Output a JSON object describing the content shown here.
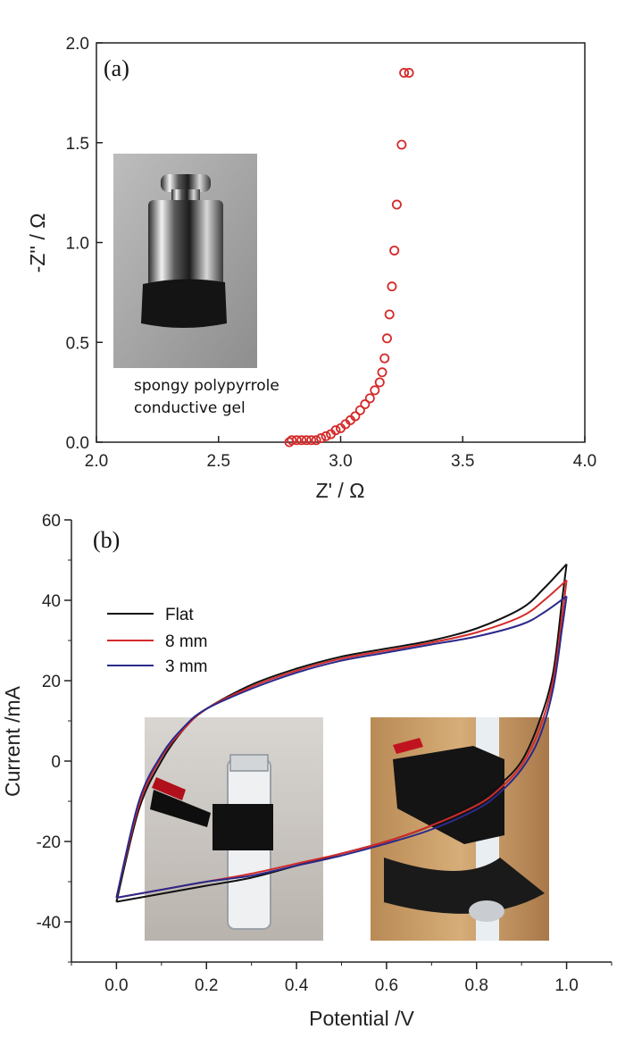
{
  "chart_data": [
    {
      "type": "scatter",
      "panel_label": "(a)",
      "xlabel": "Z' / Ω",
      "ylabel": "-Z'' / Ω",
      "xlim": [
        2.0,
        4.0
      ],
      "ylim": [
        0.0,
        2.0
      ],
      "xticks": [
        "2.0",
        "2.5",
        "3.0",
        "3.5",
        "4.0"
      ],
      "yticks": [
        "0.0",
        "0.5",
        "1.0",
        "1.5",
        "2.0"
      ],
      "marker_color": "#d42a2a",
      "inset_caption": [
        "spongy polypyrrole",
        "conductive gel"
      ],
      "x": [
        2.79,
        2.8,
        2.82,
        2.84,
        2.86,
        2.88,
        2.9,
        2.92,
        2.94,
        2.96,
        2.98,
        3.0,
        3.02,
        3.04,
        3.06,
        3.08,
        3.1,
        3.12,
        3.14,
        3.16,
        3.17,
        3.18,
        3.19,
        3.2,
        3.21,
        3.22,
        3.23,
        3.25,
        3.26,
        3.28
      ],
      "y": [
        0.0,
        0.01,
        0.01,
        0.01,
        0.01,
        0.01,
        0.01,
        0.02,
        0.03,
        0.04,
        0.06,
        0.07,
        0.09,
        0.11,
        0.13,
        0.16,
        0.19,
        0.22,
        0.26,
        0.3,
        0.35,
        0.42,
        0.52,
        0.64,
        0.78,
        0.96,
        1.19,
        1.49,
        1.85,
        1.85
      ]
    },
    {
      "type": "line",
      "panel_label": "(b)",
      "xlabel": "Potential /V",
      "ylabel": "Current /mA",
      "xlim": [
        -0.1,
        1.1
      ],
      "ylim": [
        -50,
        60
      ],
      "xticks": [
        "0.0",
        "0.2",
        "0.4",
        "0.6",
        "0.8",
        "1.0"
      ],
      "yticks": [
        "60",
        "40",
        "20",
        "0",
        "-20",
        "-40"
      ],
      "legend_position": "upper-left",
      "series": [
        {
          "name": "Flat",
          "color": "#111111",
          "upper": [
            [
              0.0,
              -35
            ],
            [
              0.05,
              -12
            ],
            [
              0.1,
              0
            ],
            [
              0.15,
              8
            ],
            [
              0.2,
              13
            ],
            [
              0.3,
              19
            ],
            [
              0.4,
              23
            ],
            [
              0.5,
              26
            ],
            [
              0.6,
              28
            ],
            [
              0.7,
              30
            ],
            [
              0.8,
              33
            ],
            [
              0.9,
              38
            ],
            [
              0.95,
              43
            ],
            [
              1.0,
              49
            ]
          ],
          "lower": [
            [
              1.0,
              49
            ],
            [
              0.99,
              40
            ],
            [
              0.97,
              22
            ],
            [
              0.94,
              10
            ],
            [
              0.9,
              0
            ],
            [
              0.85,
              -6
            ],
            [
              0.8,
              -10
            ],
            [
              0.7,
              -16
            ],
            [
              0.6,
              -20
            ],
            [
              0.5,
              -23
            ],
            [
              0.4,
              -26
            ],
            [
              0.3,
              -29
            ],
            [
              0.2,
              -31
            ],
            [
              0.1,
              -33
            ],
            [
              0.0,
              -35
            ]
          ]
        },
        {
          "name": "8 mm",
          "color": "#d42a2a",
          "upper": [
            [
              0.0,
              -34
            ],
            [
              0.05,
              -11
            ],
            [
              0.1,
              1
            ],
            [
              0.15,
              8
            ],
            [
              0.2,
              13
            ],
            [
              0.3,
              18.5
            ],
            [
              0.4,
              22.5
            ],
            [
              0.5,
              25.5
            ],
            [
              0.6,
              27.5
            ],
            [
              0.7,
              29.5
            ],
            [
              0.8,
              32
            ],
            [
              0.9,
              36
            ],
            [
              0.95,
              40
            ],
            [
              1.0,
              45
            ]
          ],
          "lower": [
            [
              1.0,
              45
            ],
            [
              0.99,
              36
            ],
            [
              0.97,
              20
            ],
            [
              0.94,
              8
            ],
            [
              0.9,
              -1
            ],
            [
              0.85,
              -7
            ],
            [
              0.8,
              -11
            ],
            [
              0.7,
              -16
            ],
            [
              0.6,
              -20
            ],
            [
              0.5,
              -23
            ],
            [
              0.4,
              -25.5
            ],
            [
              0.3,
              -28
            ],
            [
              0.2,
              -30
            ],
            [
              0.1,
              -32
            ],
            [
              0.0,
              -34
            ]
          ]
        },
        {
          "name": "3 mm",
          "color": "#2a2a8a",
          "upper": [
            [
              0.0,
              -34
            ],
            [
              0.05,
              -10
            ],
            [
              0.1,
              1.5
            ],
            [
              0.15,
              8.5
            ],
            [
              0.2,
              13
            ],
            [
              0.3,
              18
            ],
            [
              0.4,
              22
            ],
            [
              0.5,
              25
            ],
            [
              0.6,
              27
            ],
            [
              0.7,
              29
            ],
            [
              0.8,
              31
            ],
            [
              0.9,
              34
            ],
            [
              0.95,
              37
            ],
            [
              1.0,
              41
            ]
          ],
          "lower": [
            [
              1.0,
              41
            ],
            [
              0.99,
              33
            ],
            [
              0.97,
              18
            ],
            [
              0.94,
              6
            ],
            [
              0.9,
              -2
            ],
            [
              0.85,
              -8
            ],
            [
              0.8,
              -12
            ],
            [
              0.7,
              -17
            ],
            [
              0.6,
              -20.5
            ],
            [
              0.5,
              -23.5
            ],
            [
              0.4,
              -26
            ],
            [
              0.3,
              -28.5
            ],
            [
              0.2,
              -30
            ],
            [
              0.1,
              -32
            ],
            [
              0.0,
              -34
            ]
          ]
        }
      ]
    }
  ]
}
